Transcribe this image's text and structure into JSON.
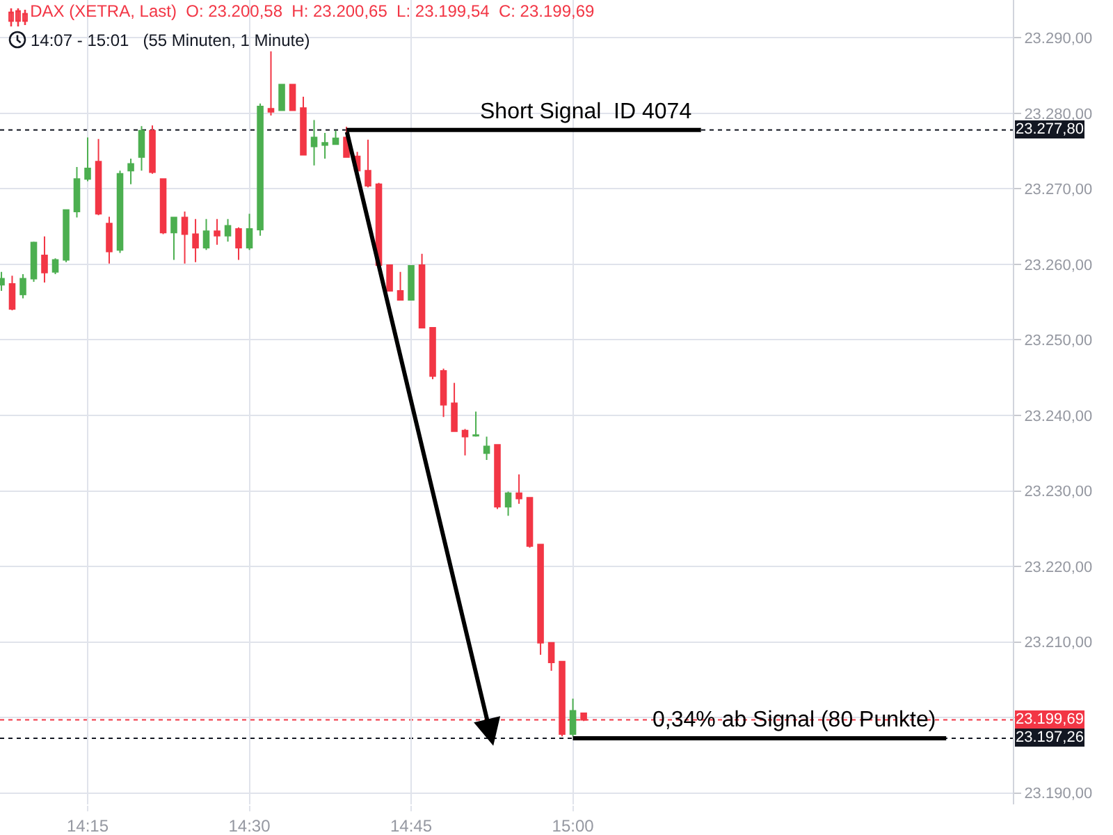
{
  "chart_data": {
    "type": "candlestick",
    "title": "DAX (XETRA, Last)  O: 23.200,58  H: 23.200,65  L: 23.199,54  C: 23.199,69",
    "subtitle": "14:07 - 15:01   (55 Minuten, 1 Minute)",
    "x": [
      14.1167,
      14.1333,
      14.15,
      14.1667,
      14.1833,
      14.2,
      14.2167,
      14.2333,
      14.25,
      14.2667,
      14.2833,
      14.3,
      14.3167,
      14.3333,
      14.35,
      14.3667,
      14.3833,
      14.4,
      14.4167,
      14.4333,
      14.45,
      14.4667,
      14.4833,
      14.5,
      14.5167,
      14.5333,
      14.55,
      14.5667,
      14.5833,
      14.6,
      14.6167,
      14.6333,
      14.65,
      14.6667,
      14.6833,
      14.7,
      14.7167,
      14.7333,
      14.75,
      14.7667,
      14.7833,
      14.8,
      14.8167,
      14.8333,
      14.85,
      14.8667,
      14.8833,
      14.9,
      14.9167,
      14.9333,
      14.95,
      14.9667,
      14.9833,
      15.0,
      15.0167
    ],
    "ohlc": [
      [
        23257.3,
        23259.0,
        23256.5,
        23258.1
      ],
      [
        23257.4,
        23258.5,
        23253.9,
        23254.1
      ],
      [
        23256.0,
        23258.7,
        23255.5,
        23258.1
      ],
      [
        23258.1,
        23263.0,
        23257.7,
        23262.9
      ],
      [
        23261.2,
        23263.7,
        23257.6,
        23258.9
      ],
      [
        23259.0,
        23260.8,
        23258.7,
        23260.6
      ],
      [
        23260.6,
        23267.3,
        23260.3,
        23267.2
      ],
      [
        23267.0,
        23272.9,
        23266.2,
        23271.3
      ],
      [
        23271.3,
        23276.8,
        23271.0,
        23272.7
      ],
      [
        23273.6,
        23276.6,
        23266.5,
        23266.7
      ],
      [
        23265.4,
        23266.3,
        23260.1,
        23261.7
      ],
      [
        23261.9,
        23272.4,
        23261.5,
        23272.0
      ],
      [
        23272.4,
        23274.0,
        23270.6,
        23273.3
      ],
      [
        23274.2,
        23278.3,
        23272.4,
        23277.7
      ],
      [
        23277.7,
        23278.4,
        23272.0,
        23272.2
      ],
      [
        23271.3,
        23271.3,
        23264.0,
        23264.2
      ],
      [
        23264.2,
        23266.3,
        23260.6,
        23266.2
      ],
      [
        23266.2,
        23267.0,
        23260.1,
        23264.0
      ],
      [
        23264.0,
        23266.0,
        23260.3,
        23262.2
      ],
      [
        23262.2,
        23266.0,
        23261.9,
        23264.4
      ],
      [
        23264.4,
        23266.0,
        23262.6,
        23263.8
      ],
      [
        23263.8,
        23266.0,
        23263.0,
        23265.1
      ],
      [
        23264.7,
        23264.9,
        23260.6,
        23262.2
      ],
      [
        23262.2,
        23266.7,
        23261.9,
        23264.7
      ],
      [
        23264.6,
        23281.3,
        23263.8,
        23280.9
      ],
      [
        23280.6,
        23288.2,
        23279.7,
        23280.2
      ],
      [
        23280.4,
        23283.8,
        23280.4,
        23283.8
      ],
      [
        23283.8,
        23283.8,
        23280.4,
        23280.4
      ],
      [
        23280.7,
        23282.2,
        23274.5,
        23274.5
      ],
      [
        23275.6,
        23279.1,
        23273.1,
        23276.8
      ],
      [
        23275.8,
        23277.4,
        23274.0,
        23276.1
      ],
      [
        23275.9,
        23277.7,
        23275.9,
        23276.7
      ],
      [
        23276.8,
        23278.2,
        23274.2,
        23274.2
      ],
      [
        23274.3,
        23274.9,
        23272.2,
        23272.4
      ],
      [
        23272.4,
        23276.5,
        23270.2,
        23270.4
      ],
      [
        23270.6,
        23270.8,
        23259.9,
        23259.9
      ],
      [
        23259.9,
        23259.9,
        23256.5,
        23256.5
      ],
      [
        23256.5,
        23259.0,
        23255.3,
        23255.3
      ],
      [
        23255.3,
        23259.8,
        23255.3,
        23259.8
      ],
      [
        23259.9,
        23261.4,
        23251.6,
        23251.6
      ],
      [
        23251.6,
        23251.6,
        23244.8,
        23245.2
      ],
      [
        23245.9,
        23246.2,
        23239.8,
        23241.4
      ],
      [
        23241.6,
        23244.3,
        23237.9,
        23237.9
      ],
      [
        23238.0,
        23238.2,
        23234.7,
        23237.2
      ],
      [
        23237.3,
        23240.5,
        23237.2,
        23237.4
      ],
      [
        23235.0,
        23237.2,
        23234.1,
        23235.9
      ],
      [
        23236.1,
        23236.1,
        23227.6,
        23227.9
      ],
      [
        23227.9,
        23229.9,
        23226.7,
        23229.7
      ],
      [
        23229.7,
        23232.2,
        23228.3,
        23229.0
      ],
      [
        23229.1,
        23229.1,
        23222.5,
        23222.7
      ],
      [
        23222.9,
        23222.9,
        23208.3,
        23209.9
      ],
      [
        23209.9,
        23209.9,
        23206.2,
        23207.3
      ],
      [
        23207.4,
        23207.4,
        23197.5,
        23197.8
      ],
      [
        23197.8,
        23202.5,
        23197.5,
        23200.9
      ],
      [
        23200.58,
        23200.65,
        23199.54,
        23199.69
      ]
    ],
    "colors": [
      "#4caf50",
      "#f23645",
      "#4caf50",
      "#4caf50",
      "#f23645",
      "#4caf50",
      "#4caf50",
      "#4caf50",
      "#4caf50",
      "#f23645",
      "#f23645",
      "#4caf50",
      "#4caf50",
      "#4caf50",
      "#f23645",
      "#f23645",
      "#4caf50",
      "#f23645",
      "#f23645",
      "#4caf50",
      "#f23645",
      "#4caf50",
      "#f23645",
      "#4caf50",
      "#4caf50",
      "#f23645",
      "#4caf50",
      "#f23645",
      "#f23645",
      "#4caf50",
      "#4caf50",
      "#4caf50",
      "#f23645",
      "#f23645",
      "#f23645",
      "#f23645",
      "#f23645",
      "#f23645",
      "#4caf50",
      "#f23645",
      "#f23645",
      "#f23645",
      "#f23645",
      "#f23645",
      "#4caf50",
      "#4caf50",
      "#f23645",
      "#4caf50",
      "#f23645",
      "#f23645",
      "#f23645",
      "#f23645",
      "#f23645",
      "#4caf50",
      "#f23645"
    ],
    "series": [
      {
        "type": "line",
        "color": "#000000",
        "x": [
          14.65,
          15.198
        ],
        "values": [
          23277.8,
          23277.8
        ]
      },
      {
        "type": "line",
        "color": "#000000",
        "x": [
          15.0,
          15.577
        ],
        "values": [
          23197.26,
          23197.26
        ]
      }
    ],
    "annotations": [
      {
        "text": "Short Signal  ID 4074",
        "x": 15.02,
        "y": 23277.8
      },
      {
        "text": "0,34% ab Signal (80 Punkte)",
        "x": 15.343,
        "y": 23197.26
      }
    ],
    "ref_lines": [
      {
        "axis": "y",
        "value": 23277.8,
        "label": "23.277,80",
        "color": "#131722"
      },
      {
        "axis": "y",
        "value": 23199.69,
        "label": "23.199,69",
        "color": "#f23645"
      },
      {
        "axis": "y",
        "value": 23197.26,
        "label": "23.197,26",
        "color": "#131722"
      }
    ],
    "xlim": [
      14.1145,
      15.68
    ],
    "ylim": [
      23188.5,
      23295
    ],
    "xticks": [
      {
        "value": 14.25,
        "label": "14:15"
      },
      {
        "value": 14.5,
        "label": "14:30"
      },
      {
        "value": 14.75,
        "label": "14:45"
      },
      {
        "value": 15.0,
        "label": "15:00"
      }
    ],
    "yticks": [
      {
        "value": 23190,
        "label": "23.190,00"
      },
      {
        "value": 23200,
        "label": null
      },
      {
        "value": 23210,
        "label": "23.210,00"
      },
      {
        "value": 23220,
        "label": "23.220,00"
      },
      {
        "value": 23230,
        "label": "23.230,00"
      },
      {
        "value": 23240,
        "label": "23.240,00"
      },
      {
        "value": 23250,
        "label": "23.250,00"
      },
      {
        "value": 23260,
        "label": "23.260,00"
      },
      {
        "value": 23270,
        "label": "23.270,00"
      },
      {
        "value": 23280,
        "label": "23.280,00"
      },
      {
        "value": 23290,
        "label": "23.290,00"
      }
    ],
    "grid": true
  }
}
